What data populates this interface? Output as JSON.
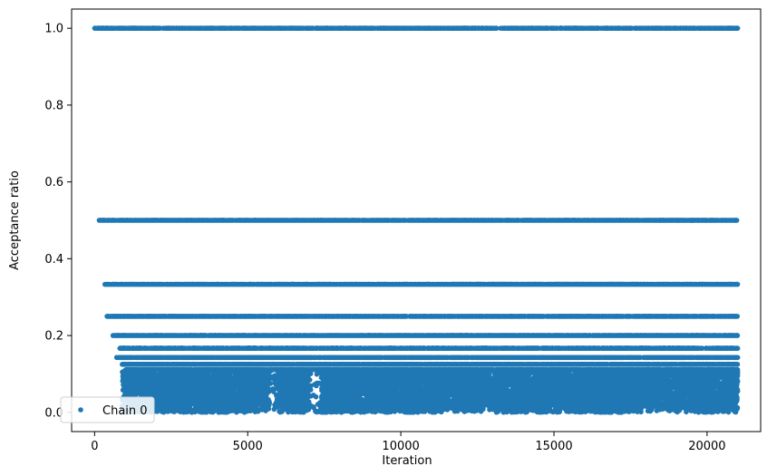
{
  "chart_data": {
    "type": "scatter",
    "title": "",
    "xlabel": "Iteration",
    "ylabel": "Acceptance ratio",
    "xlim": [
      -750,
      21750
    ],
    "ylim": [
      -0.05,
      1.05
    ],
    "xticks": [
      0,
      5000,
      10000,
      15000,
      20000
    ],
    "xtick_labels": [
      "0",
      "5000",
      "10000",
      "15000",
      "20000"
    ],
    "yticks": [
      0.0,
      0.2,
      0.4,
      0.6,
      0.8,
      1.0
    ],
    "ytick_labels": [
      "0.0",
      "0.2",
      "0.4",
      "0.6",
      "0.8",
      "1.0"
    ],
    "grid": false,
    "legend": {
      "position": "lower-left",
      "entries": [
        "Chain 0"
      ]
    },
    "series": [
      {
        "name": "Chain 0",
        "color": "#1f77b4",
        "marker": "circle",
        "x_range": [
          0,
          21000
        ],
        "discrete_levels": [
          {
            "y": 1.0,
            "x_start": 0,
            "x_end": 21000
          },
          {
            "y": 0.5,
            "x_start": 150,
            "x_end": 21000
          },
          {
            "y": 0.3333,
            "x_start": 300,
            "x_end": 21000
          },
          {
            "y": 0.25,
            "x_start": 400,
            "x_end": 21000
          },
          {
            "y": 0.2,
            "x_start": 600,
            "x_end": 21000
          },
          {
            "y": 0.1667,
            "x_start": 800,
            "x_end": 21000
          },
          {
            "y": 0.1429,
            "x_start": 700,
            "x_end": 21000
          },
          {
            "y": 0.125,
            "x_start": 900,
            "x_end": 21000
          },
          {
            "y": 0.1111,
            "x_start": 1000,
            "x_end": 21000
          }
        ],
        "dense_region": {
          "y_min": 0.0,
          "y_max": 0.11,
          "x_start": 900,
          "x_end": 21000
        },
        "gaps_in_dense_region": [
          [
            5700,
            6000
          ],
          [
            7000,
            7400
          ]
        ]
      }
    ]
  }
}
